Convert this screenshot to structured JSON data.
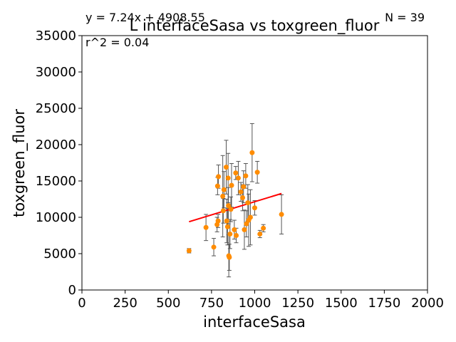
{
  "chart_data": {
    "type": "scatter",
    "title": "L interfaceSasa vs toxgreen_fluor",
    "xlabel": "interfaceSasa",
    "ylabel": "toxgreen_fluor",
    "xlim": [
      0,
      2000
    ],
    "ylim": [
      0,
      35000
    ],
    "xticks": [
      0,
      250,
      500,
      750,
      1000,
      1250,
      1500,
      1750,
      2000
    ],
    "yticks": [
      0,
      5000,
      10000,
      15000,
      20000,
      25000,
      30000,
      35000
    ],
    "grid": false,
    "annotations": {
      "equation": "y = 7.24x + 4908.55",
      "r2": "r^2 = 0.04",
      "n": "N = 39"
    },
    "fit_line": {
      "x": [
        620,
        1155
      ],
      "y": [
        9397,
        13271
      ],
      "color": "#ff0000"
    },
    "point_color": "#ff8c00",
    "errorbar_color": "#555555",
    "points": [
      {
        "x": 620,
        "y": 5400,
        "err": 300
      },
      {
        "x": 763,
        "y": 5900,
        "err": 1200
      },
      {
        "x": 718,
        "y": 8600,
        "err": 1800
      },
      {
        "x": 782,
        "y": 9000,
        "err": 1000
      },
      {
        "x": 788,
        "y": 9500,
        "err": 900
      },
      {
        "x": 785,
        "y": 14300,
        "err": 1200
      },
      {
        "x": 790,
        "y": 15600,
        "err": 1600
      },
      {
        "x": 815,
        "y": 12900,
        "err": 5600
      },
      {
        "x": 822,
        "y": 13800,
        "err": 2500
      },
      {
        "x": 818,
        "y": 10900,
        "err": 1700
      },
      {
        "x": 835,
        "y": 16900,
        "err": 3700
      },
      {
        "x": 838,
        "y": 9500,
        "err": 3000
      },
      {
        "x": 843,
        "y": 8700,
        "err": 2500
      },
      {
        "x": 848,
        "y": 11600,
        "err": 2500
      },
      {
        "x": 846,
        "y": 15400,
        "err": 3400
      },
      {
        "x": 850,
        "y": 4700,
        "err": 2900
      },
      {
        "x": 853,
        "y": 4500,
        "err": 1800
      },
      {
        "x": 857,
        "y": 7700,
        "err": 2000
      },
      {
        "x": 862,
        "y": 11100,
        "err": 1700
      },
      {
        "x": 866,
        "y": 14400,
        "err": 3000
      },
      {
        "x": 882,
        "y": 8300,
        "err": 1300
      },
      {
        "x": 893,
        "y": 7500,
        "err": 1000
      },
      {
        "x": 890,
        "y": 16100,
        "err": 900
      },
      {
        "x": 905,
        "y": 15400,
        "err": 2300
      },
      {
        "x": 920,
        "y": 13500,
        "err": 1300
      },
      {
        "x": 930,
        "y": 12700,
        "err": 1800
      },
      {
        "x": 935,
        "y": 14200,
        "err": 2200
      },
      {
        "x": 940,
        "y": 8300,
        "err": 2700
      },
      {
        "x": 952,
        "y": 9100,
        "err": 1800
      },
      {
        "x": 948,
        "y": 15700,
        "err": 1700
      },
      {
        "x": 960,
        "y": 12000,
        "err": 2500
      },
      {
        "x": 965,
        "y": 9600,
        "err": 3600
      },
      {
        "x": 975,
        "y": 10000,
        "err": 3800
      },
      {
        "x": 985,
        "y": 18900,
        "err": 4000
      },
      {
        "x": 1000,
        "y": 11300,
        "err": 1000
      },
      {
        "x": 1015,
        "y": 16200,
        "err": 1500
      },
      {
        "x": 1030,
        "y": 7700,
        "err": 500
      },
      {
        "x": 1050,
        "y": 8500,
        "err": 500
      },
      {
        "x": 1155,
        "y": 10400,
        "err": 2700
      }
    ]
  }
}
